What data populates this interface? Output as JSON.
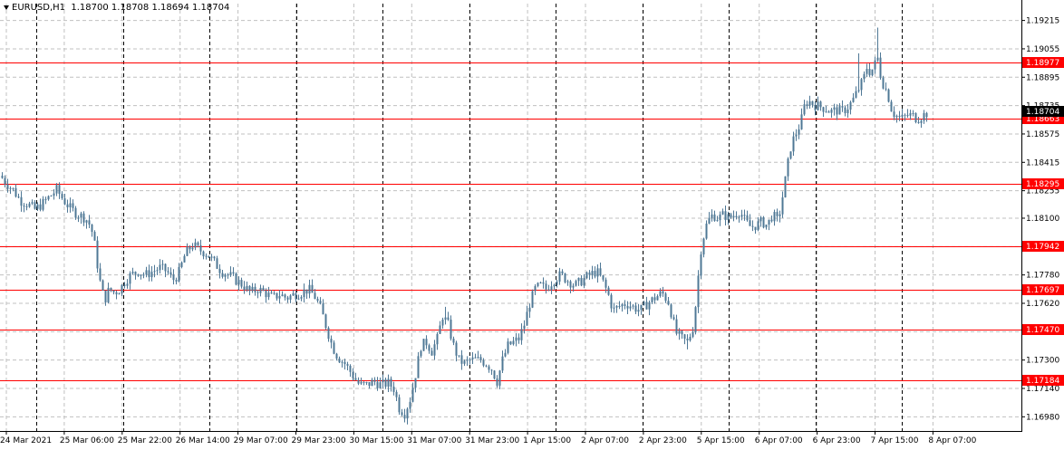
{
  "header": {
    "symbol": "EURUSD,H1",
    "open": "1.18700",
    "high": "1.18708",
    "low": "1.18694",
    "close": "1.18704"
  },
  "chart_data": {
    "type": "candlestick",
    "colors": {
      "candle": "#4f7896",
      "level_line": "#ff0000",
      "grid": "#c0c0c0",
      "vline": "#000000",
      "current_bg": "#000000"
    },
    "price_axis": {
      "ylim": [
        1.169,
        1.1931
      ],
      "ticks": [
        "1.19215",
        "1.19055",
        "1.18895",
        "1.18735",
        "1.18575",
        "1.18415",
        "1.18255",
        "1.18100",
        "1.17940",
        "1.17780",
        "1.17620",
        "1.17460",
        "1.17300",
        "1.17140",
        "1.16980"
      ]
    },
    "current_price": "1.18704",
    "levels": [
      "1.18977",
      "1.18663",
      "1.18295",
      "1.17942",
      "1.17697",
      "1.17470",
      "1.17184"
    ],
    "time_axis": {
      "labels": [
        "24 Mar 2021",
        "25 Mar 06:00",
        "25 Mar 22:00",
        "26 Mar 14:00",
        "29 Mar 07:00",
        "29 Mar 23:00",
        "30 Mar 15:00",
        "31 Mar 07:00",
        "31 Mar 23:00",
        "1 Apr 15:00",
        "2 Apr 07:00",
        "2 Apr 23:00",
        "5 Apr 15:00",
        "6 Apr 07:00",
        "6 Apr 23:00",
        "7 Apr 15:00",
        "8 Apr 07:00"
      ]
    },
    "day_separators": [
      "25 Mar",
      "26 Mar",
      "29 Mar",
      "30 Mar",
      "31 Mar",
      "1 Apr",
      "2 Apr",
      "5 Apr",
      "6 Apr",
      "7 Apr",
      "8 Apr"
    ],
    "close_path": [
      [
        0,
        1.1834
      ],
      [
        6,
        1.183
      ],
      [
        14,
        1.1826
      ],
      [
        22,
        1.182
      ],
      [
        30,
        1.1818
      ],
      [
        38,
        1.1815
      ],
      [
        46,
        1.1818
      ],
      [
        54,
        1.1822
      ],
      [
        62,
        1.1826
      ],
      [
        70,
        1.182
      ],
      [
        78,
        1.1815
      ],
      [
        86,
        1.1812
      ],
      [
        94,
        1.181
      ],
      [
        100,
        1.1805
      ],
      [
        104,
        1.1795
      ],
      [
        108,
        1.178
      ],
      [
        112,
        1.1768
      ],
      [
        116,
        1.1765
      ],
      [
        120,
        1.177
      ],
      [
        126,
        1.1768
      ],
      [
        132,
        1.177
      ],
      [
        138,
        1.1775
      ],
      [
        144,
        1.1778
      ],
      [
        152,
        1.178
      ],
      [
        160,
        1.1778
      ],
      [
        168,
        1.178
      ],
      [
        176,
        1.1782
      ],
      [
        184,
        1.178
      ],
      [
        190,
        1.1775
      ],
      [
        196,
        1.1778
      ],
      [
        204,
        1.179
      ],
      [
        212,
        1.1795
      ],
      [
        220,
        1.1792
      ],
      [
        228,
        1.179
      ],
      [
        236,
        1.1785
      ],
      [
        244,
        1.178
      ],
      [
        252,
        1.1778
      ],
      [
        260,
        1.1775
      ],
      [
        268,
        1.1772
      ],
      [
        276,
        1.1768
      ],
      [
        284,
        1.177
      ],
      [
        292,
        1.1768
      ],
      [
        300,
        1.1765
      ],
      [
        308,
        1.1767
      ],
      [
        316,
        1.1765
      ],
      [
        324,
        1.1767
      ],
      [
        332,
        1.1768
      ],
      [
        340,
        1.177
      ],
      [
        348,
        1.1765
      ],
      [
        354,
        1.1758
      ],
      [
        360,
        1.1748
      ],
      [
        366,
        1.1738
      ],
      [
        372,
        1.1732
      ],
      [
        380,
        1.1728
      ],
      [
        388,
        1.1722
      ],
      [
        396,
        1.1716
      ],
      [
        404,
        1.1716
      ],
      [
        412,
        1.1718
      ],
      [
        420,
        1.1716
      ],
      [
        428,
        1.1717
      ],
      [
        434,
        1.1714
      ],
      [
        440,
        1.1703
      ],
      [
        446,
        1.17
      ],
      [
        452,
        1.1708
      ],
      [
        458,
        1.1722
      ],
      [
        464,
        1.1738
      ],
      [
        470,
        1.174
      ],
      [
        476,
        1.1735
      ],
      [
        482,
        1.1742
      ],
      [
        488,
        1.1755
      ],
      [
        494,
        1.175
      ],
      [
        500,
        1.1738
      ],
      [
        506,
        1.173
      ],
      [
        512,
        1.1728
      ],
      [
        518,
        1.173
      ],
      [
        524,
        1.173
      ],
      [
        530,
        1.173
      ],
      [
        536,
        1.1728
      ],
      [
        542,
        1.1725
      ],
      [
        548,
        1.1718
      ],
      [
        554,
        1.173
      ],
      [
        560,
        1.1738
      ],
      [
        566,
        1.174
      ],
      [
        572,
        1.1742
      ],
      [
        578,
        1.175
      ],
      [
        584,
        1.1762
      ],
      [
        590,
        1.177
      ],
      [
        596,
        1.1772
      ],
      [
        602,
        1.177
      ],
      [
        610,
        1.1775
      ],
      [
        618,
        1.1778
      ],
      [
        626,
        1.1775
      ],
      [
        634,
        1.1772
      ],
      [
        642,
        1.1775
      ],
      [
        650,
        1.1778
      ],
      [
        658,
        1.178
      ],
      [
        664,
        1.1775
      ],
      [
        670,
        1.1768
      ],
      [
        676,
        1.1758
      ],
      [
        682,
        1.176
      ],
      [
        690,
        1.1762
      ],
      [
        698,
        1.176
      ],
      [
        706,
        1.1758
      ],
      [
        714,
        1.1762
      ],
      [
        722,
        1.1765
      ],
      [
        730,
        1.1768
      ],
      [
        738,
        1.1762
      ],
      [
        742,
        1.1752
      ],
      [
        746,
        1.1745
      ],
      [
        752,
        1.1742
      ],
      [
        758,
        1.174
      ],
      [
        764,
        1.1748
      ],
      [
        768,
        1.1765
      ],
      [
        772,
        1.179
      ],
      [
        776,
        1.18
      ],
      [
        780,
        1.1808
      ],
      [
        786,
        1.1812
      ],
      [
        792,
        1.181
      ],
      [
        798,
        1.1812
      ],
      [
        804,
        1.181
      ],
      [
        810,
        1.1812
      ],
      [
        816,
        1.1814
      ],
      [
        822,
        1.1808
      ],
      [
        828,
        1.1805
      ],
      [
        834,
        1.1806
      ],
      [
        840,
        1.1808
      ],
      [
        846,
        1.1806
      ],
      [
        852,
        1.1812
      ],
      [
        858,
        1.1808
      ],
      [
        864,
        1.1825
      ],
      [
        868,
        1.1838
      ],
      [
        872,
        1.185
      ],
      [
        876,
        1.1856
      ],
      [
        880,
        1.186
      ],
      [
        884,
        1.1866
      ],
      [
        888,
        1.1875
      ],
      [
        892,
        1.1876
      ],
      [
        898,
        1.1874
      ],
      [
        904,
        1.1873
      ],
      [
        910,
        1.1872
      ],
      [
        916,
        1.187
      ],
      [
        922,
        1.1871
      ],
      [
        928,
        1.187
      ],
      [
        934,
        1.1872
      ],
      [
        940,
        1.1876
      ],
      [
        946,
        1.1882
      ],
      [
        952,
        1.1888
      ],
      [
        956,
        1.1895
      ],
      [
        960,
        1.1892
      ],
      [
        964,
        1.1896
      ],
      [
        968,
        1.19
      ],
      [
        972,
        1.1888
      ],
      [
        976,
        1.1884
      ],
      [
        980,
        1.1878
      ],
      [
        984,
        1.187
      ],
      [
        988,
        1.1868
      ],
      [
        994,
        1.1866
      ],
      [
        1000,
        1.1868
      ],
      [
        1006,
        1.1868
      ],
      [
        1012,
        1.1866
      ],
      [
        1018,
        1.1868
      ],
      [
        1024,
        1.187
      ]
    ],
    "spikes": [
      [
        968,
        1.19175
      ],
      [
        948,
        1.1903
      ],
      [
        490,
        1.176
      ],
      [
        446,
        1.1698
      ],
      [
        758,
        1.1736
      ]
    ]
  }
}
